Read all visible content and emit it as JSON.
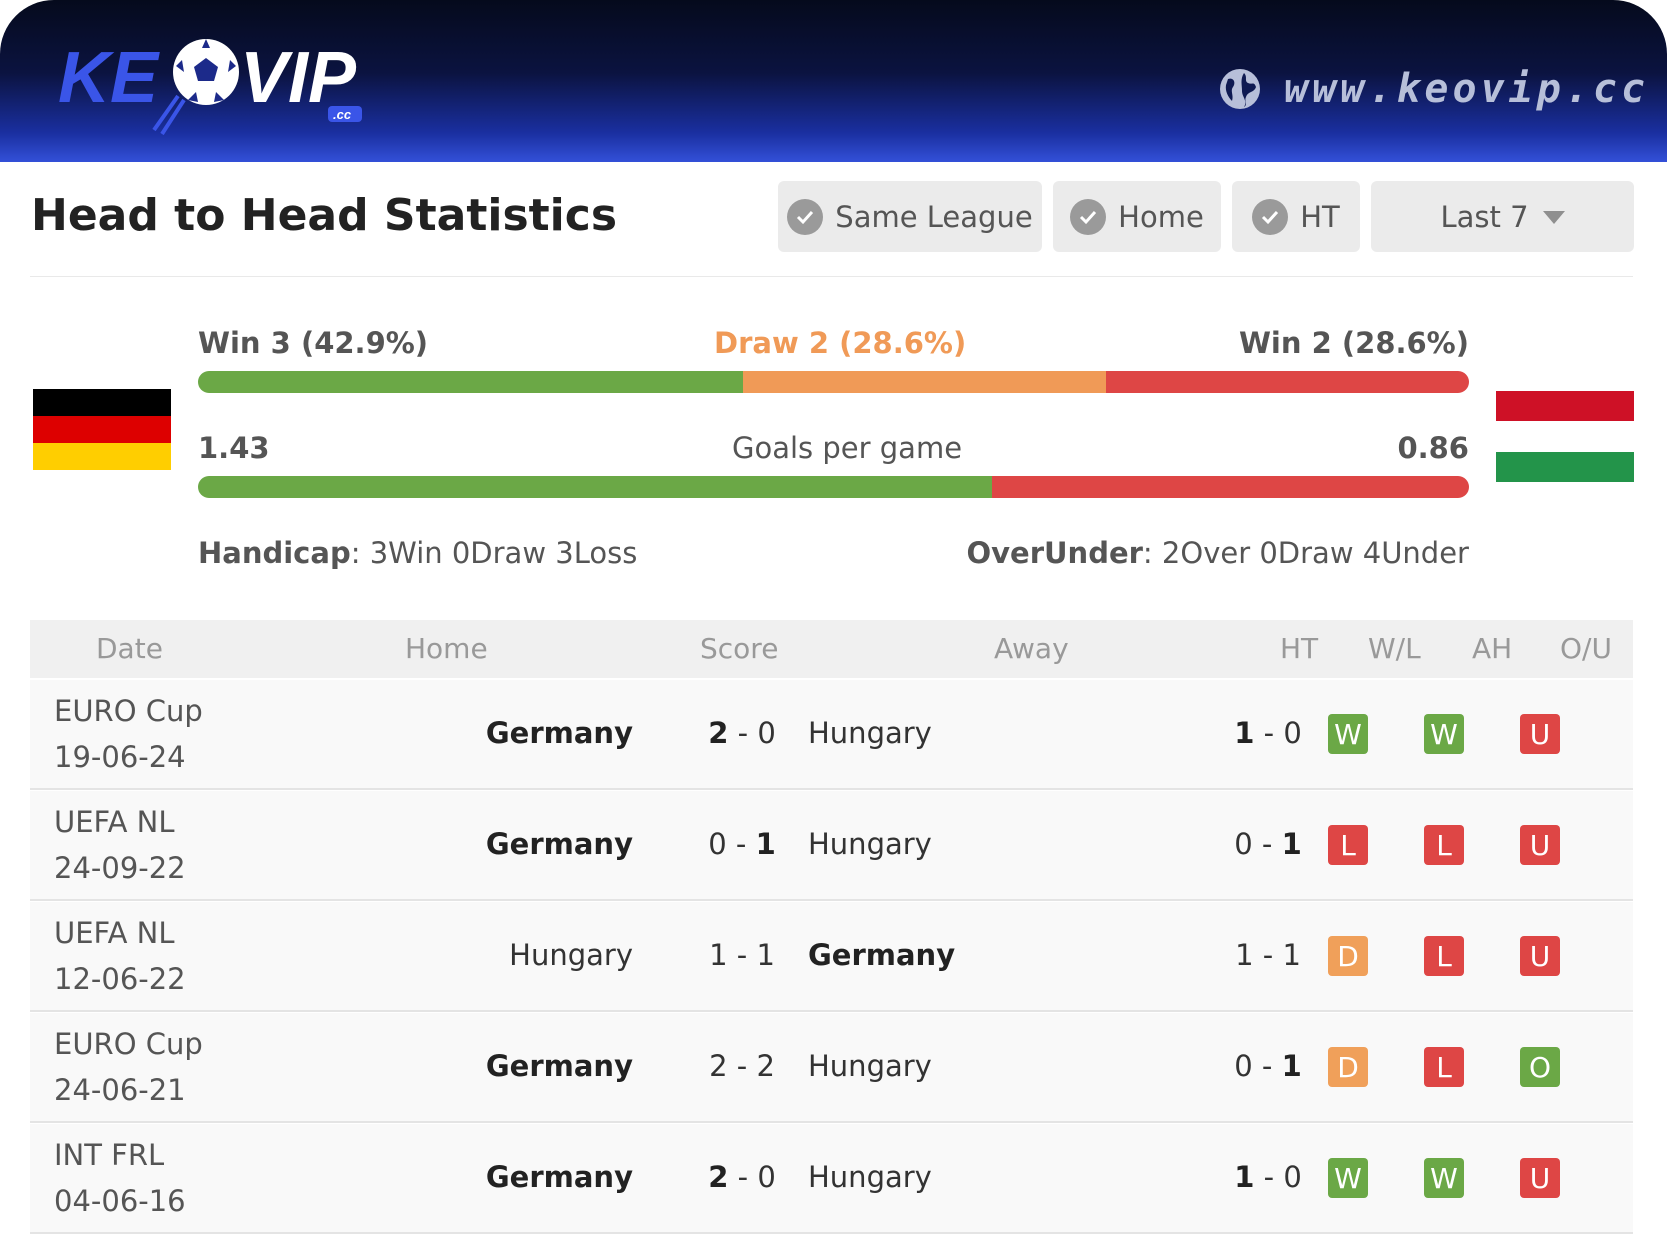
{
  "header": {
    "site_url": "www.keovip.cc",
    "logo_text": "KEOVIP",
    "logo_suffix": ".cc"
  },
  "title": "Head to Head Statistics",
  "filters": {
    "same_league": "Same League",
    "home": "Home",
    "ht": "HT",
    "last": "Last 7"
  },
  "summary": {
    "home_win": "Win 3 (42.9%)",
    "draw": "Draw 2 (28.6%)",
    "away_win": "Win 2 (28.6%)",
    "result_split": {
      "home_win": 0.429,
      "draw": 0.286,
      "away_win": 0.286
    },
    "home_goals": "1.43",
    "goals_label": "Goals per game",
    "away_goals": "0.86",
    "goals_split": {
      "home": 1.43,
      "away": 0.86
    },
    "handicap_label": "Handicap",
    "handicap_sep": ":",
    "handicap_value": "3Win 0Draw 3Loss",
    "overunder_label": "OverUnder",
    "overunder_sep": ":",
    "overunder_value": "2Over 0Draw 4Under"
  },
  "colors": {
    "win": "#6ba846",
    "draw": "#f09a57",
    "loss": "#de4645"
  },
  "table": {
    "headers": {
      "date": "Date",
      "home": "Home",
      "score": "Score",
      "away": "Away",
      "ht": "HT",
      "wl": "W/L",
      "ah": "AH",
      "ou": "O/U"
    },
    "rows": [
      {
        "league": "EURO Cup",
        "date": "19-06-24",
        "home": "Germany",
        "home_bold": true,
        "hs": "2",
        "sep": "-",
        "as": "0",
        "hs_bold": true,
        "as_bold": false,
        "away": "Hungary",
        "away_bold": false,
        "hth": "1",
        "hta": "0",
        "hth_bold": true,
        "hta_bold": false,
        "wl": "W",
        "ah": "W",
        "ou": "U"
      },
      {
        "league": "UEFA NL",
        "date": "24-09-22",
        "home": "Germany",
        "home_bold": true,
        "hs": "0",
        "sep": "-",
        "as": "1",
        "hs_bold": false,
        "as_bold": true,
        "away": "Hungary",
        "away_bold": false,
        "hth": "0",
        "hta": "1",
        "hth_bold": false,
        "hta_bold": true,
        "wl": "L",
        "ah": "L",
        "ou": "U"
      },
      {
        "league": "UEFA NL",
        "date": "12-06-22",
        "home": "Hungary",
        "home_bold": false,
        "hs": "1",
        "sep": "-",
        "as": "1",
        "hs_bold": false,
        "as_bold": false,
        "away": "Germany",
        "away_bold": true,
        "hth": "1",
        "hta": "1",
        "hth_bold": false,
        "hta_bold": false,
        "wl": "D",
        "ah": "L",
        "ou": "U"
      },
      {
        "league": "EURO Cup",
        "date": "24-06-21",
        "home": "Germany",
        "home_bold": true,
        "hs": "2",
        "sep": "-",
        "as": "2",
        "hs_bold": false,
        "as_bold": false,
        "away": "Hungary",
        "away_bold": false,
        "hth": "0",
        "hta": "1",
        "hth_bold": false,
        "hta_bold": true,
        "wl": "D",
        "ah": "L",
        "ou": "O"
      },
      {
        "league": "INT FRL",
        "date": "04-06-16",
        "home": "Germany",
        "home_bold": true,
        "hs": "2",
        "sep": "-",
        "as": "0",
        "hs_bold": true,
        "as_bold": false,
        "away": "Hungary",
        "away_bold": false,
        "hth": "1",
        "hta": "0",
        "hth_bold": true,
        "hta_bold": false,
        "wl": "W",
        "ah": "W",
        "ou": "U"
      }
    ]
  }
}
